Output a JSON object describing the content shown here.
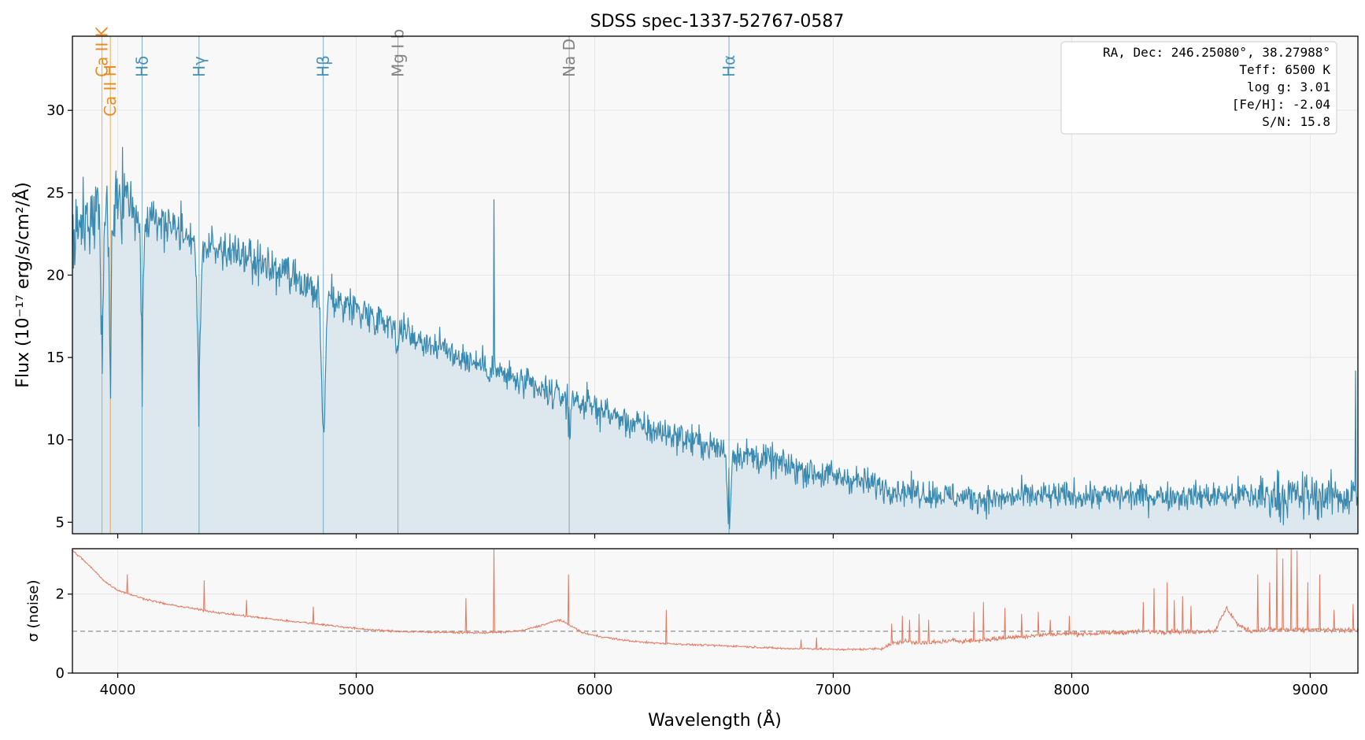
{
  "chart_data": [
    {
      "type": "line",
      "title": "SDSS spec-1337-52767-0587",
      "xlabel": "",
      "ylabel": "Flux (10⁻¹⁷ erg/s/cm²/Å)",
      "xlim": [
        3810,
        9200
      ],
      "ylim": [
        4.3,
        34.5
      ],
      "yticks": [
        5,
        10,
        15,
        20,
        25,
        30
      ],
      "grid": true,
      "colors": {
        "flux": "#3a8ab0",
        "fill": "#dce8ee",
        "ca": "#e8820c",
        "balmer": "#3a8ab0",
        "metal": "#777777",
        "panel_bg": "#f8f8f8"
      },
      "series": [
        {
          "name": "",
          "x_start": 3810,
          "x_step": 30,
          "y": [
            22.3,
            23.5,
            23.0,
            23.8,
            23.6,
            24.0,
            24.6,
            24.4,
            24.2,
            23.9,
            23.7,
            23.5,
            23.4,
            23.2,
            23.0,
            22.9,
            22.6,
            22.2,
            21.9,
            21.8,
            21.6,
            21.5,
            21.3,
            21.3,
            21.0,
            20.9,
            20.6,
            20.6,
            20.3,
            20.2,
            19.9,
            19.6,
            19.3,
            19.1,
            18.9,
            18.7,
            18.6,
            18.4,
            18.3,
            18.1,
            17.9,
            17.7,
            17.5,
            17.4,
            17.2,
            17.0,
            16.8,
            16.5,
            16.2,
            16.0,
            15.8,
            15.7,
            15.5,
            15.3,
            15.1,
            14.9,
            14.7,
            14.6,
            14.4,
            14.2,
            14.0,
            13.8,
            13.6,
            13.4,
            13.2,
            13.0,
            12.9,
            12.8,
            12.7,
            12.6,
            12.5,
            12.3,
            12.1,
            12.0,
            11.8,
            11.6,
            11.4,
            11.2,
            11.0,
            10.9,
            10.7,
            10.6,
            10.5,
            10.4,
            10.3,
            10.2,
            10.0,
            9.9,
            9.8,
            9.6,
            9.5,
            9.4,
            9.3,
            9.2,
            9.1,
            9.0,
            8.9,
            8.8,
            8.7,
            8.5,
            8.4,
            8.3,
            8.2,
            8.1,
            8.0,
            7.9,
            7.8,
            7.7,
            7.7,
            7.6,
            7.5,
            7.4,
            7.3,
            7.2,
            7.1,
            7.0,
            6.9,
            6.9,
            6.8,
            6.8,
            6.7,
            6.7,
            6.6,
            6.6,
            6.5,
            6.5,
            6.5,
            6.4,
            6.4,
            6.4,
            6.4,
            6.5,
            6.5,
            6.6,
            6.6,
            6.6,
            6.6,
            6.6,
            6.6,
            6.6,
            6.6,
            6.6,
            6.6,
            6.6,
            6.6,
            6.6,
            6.6,
            6.6,
            6.6,
            6.6,
            6.6,
            6.6,
            6.6,
            6.6,
            6.6,
            6.6,
            6.6,
            6.6,
            6.6,
            6.6,
            6.6,
            6.6,
            6.6,
            6.6,
            6.6,
            6.6,
            6.6,
            6.6,
            6.6,
            6.6,
            6.6,
            6.6,
            6.6,
            6.6,
            6.6,
            6.6,
            6.6,
            6.6,
            6.6,
            6.6,
            6.6,
            6.6,
            6.6,
            6.6,
            6.6,
            6.6,
            6.6,
            6.6
          ],
          "features": [
            {
              "x": 3934,
              "y": 14.0
            },
            {
              "x": 3969,
              "y": 12.5
            },
            {
              "x": 4102,
              "y": 12.0
            },
            {
              "x": 4341,
              "y": 10.8
            },
            {
              "x": 4862,
              "y": 10.7
            },
            {
              "x": 5577,
              "y": 24.6
            },
            {
              "x": 5893,
              "y": 12.0
            },
            {
              "x": 6563,
              "y": 8.3
            },
            {
              "x": 9190,
              "y": 14.2
            }
          ]
        }
      ],
      "lines": [
        {
          "x": 3934,
          "label": "Ca II K",
          "color": "#e8820c"
        },
        {
          "x": 3969,
          "label": "Ca II H",
          "color": "#e8820c"
        },
        {
          "x": 4102,
          "label": "Hδ",
          "color": "#3a8ab0"
        },
        {
          "x": 4341,
          "label": "Hγ",
          "color": "#3a8ab0"
        },
        {
          "x": 4862,
          "label": "Hβ",
          "color": "#3a8ab0"
        },
        {
          "x": 5175,
          "label": "Mg I b",
          "color": "#777777"
        },
        {
          "x": 5893,
          "label": "Na D",
          "color": "#777777"
        },
        {
          "x": 6563,
          "label": "Hα",
          "color": "#3a8ab0"
        }
      ],
      "info_box": [
        "RA, Dec: 246.25080°, 38.27988°",
        "Teff: 6500 K",
        "log g: 3.01",
        "[Fe/H]: -2.04",
        "S/N: 15.8"
      ]
    },
    {
      "type": "line",
      "title": "",
      "xlabel": "Wavelength (Å)",
      "ylabel": "σ (noise)",
      "xlim": [
        3810,
        9200
      ],
      "ylim": [
        0,
        3.15
      ],
      "xticks": [
        4000,
        5000,
        6000,
        7000,
        8000,
        9000
      ],
      "yticks": [
        0,
        2
      ],
      "grid": true,
      "reference_line": 1.06,
      "colors": {
        "sigma": "#e07a5f",
        "reference": "#999999"
      },
      "series": [
        {
          "name": "",
          "x": [
            3810,
            3850,
            3900,
            3950,
            4000,
            4100,
            4200,
            4300,
            4400,
            4500,
            4600,
            4700,
            4800,
            4900,
            5000,
            5100,
            5200,
            5300,
            5400,
            5500,
            5600,
            5700,
            5800,
            5850,
            5900,
            5950,
            6000,
            6100,
            6200,
            6300,
            6400,
            6500,
            6600,
            6700,
            6800,
            6900,
            7000,
            7100,
            7200,
            7250,
            7300,
            7400,
            7500,
            7600,
            7700,
            7800,
            7900,
            8000,
            8100,
            8200,
            8300,
            8400,
            8500,
            8600,
            8650,
            8700,
            8750,
            8800,
            8850,
            8900,
            8950,
            9000,
            9100,
            9200
          ],
          "y": [
            3.1,
            2.9,
            2.6,
            2.3,
            2.1,
            1.9,
            1.75,
            1.65,
            1.55,
            1.47,
            1.4,
            1.33,
            1.27,
            1.2,
            1.13,
            1.08,
            1.05,
            1.04,
            1.03,
            1.02,
            1.03,
            1.08,
            1.25,
            1.35,
            1.2,
            1.02,
            0.95,
            0.85,
            0.78,
            0.75,
            0.72,
            0.7,
            0.68,
            0.65,
            0.62,
            0.62,
            0.6,
            0.6,
            0.62,
            0.75,
            0.8,
            0.76,
            0.82,
            0.82,
            0.88,
            0.93,
            0.98,
            1.0,
            1.0,
            1.03,
            1.05,
            1.05,
            1.05,
            1.07,
            1.65,
            1.2,
            1.07,
            1.1,
            1.1,
            1.1,
            1.08,
            1.1,
            1.08,
            1.1
          ],
          "spikes": [
            {
              "x": 4040,
              "y": 2.5
            },
            {
              "x": 4362,
              "y": 2.35
            },
            {
              "x": 4540,
              "y": 1.85
            },
            {
              "x": 4820,
              "y": 1.68
            },
            {
              "x": 5460,
              "y": 1.9
            },
            {
              "x": 5577,
              "y": 3.15
            },
            {
              "x": 5890,
              "y": 2.5
            },
            {
              "x": 6300,
              "y": 1.6
            },
            {
              "x": 6865,
              "y": 0.85
            },
            {
              "x": 6930,
              "y": 0.9
            },
            {
              "x": 7245,
              "y": 1.25
            },
            {
              "x": 7290,
              "y": 1.45
            },
            {
              "x": 7320,
              "y": 1.35
            },
            {
              "x": 7360,
              "y": 1.5
            },
            {
              "x": 7400,
              "y": 1.35
            },
            {
              "x": 7590,
              "y": 1.55
            },
            {
              "x": 7630,
              "y": 1.8
            },
            {
              "x": 7720,
              "y": 1.65
            },
            {
              "x": 7790,
              "y": 1.5
            },
            {
              "x": 7860,
              "y": 1.55
            },
            {
              "x": 7910,
              "y": 1.35
            },
            {
              "x": 7990,
              "y": 1.45
            },
            {
              "x": 8300,
              "y": 1.8
            },
            {
              "x": 8345,
              "y": 2.15
            },
            {
              "x": 8400,
              "y": 2.3
            },
            {
              "x": 8430,
              "y": 1.85
            },
            {
              "x": 8465,
              "y": 1.95
            },
            {
              "x": 8500,
              "y": 1.7
            },
            {
              "x": 8780,
              "y": 2.5
            },
            {
              "x": 8830,
              "y": 2.3
            },
            {
              "x": 8860,
              "y": 3.15
            },
            {
              "x": 8885,
              "y": 2.9
            },
            {
              "x": 8920,
              "y": 3.15
            },
            {
              "x": 8945,
              "y": 3.1
            },
            {
              "x": 8990,
              "y": 2.3
            },
            {
              "x": 9040,
              "y": 2.5
            },
            {
              "x": 9100,
              "y": 1.6
            },
            {
              "x": 9180,
              "y": 1.75
            }
          ]
        }
      ]
    }
  ]
}
